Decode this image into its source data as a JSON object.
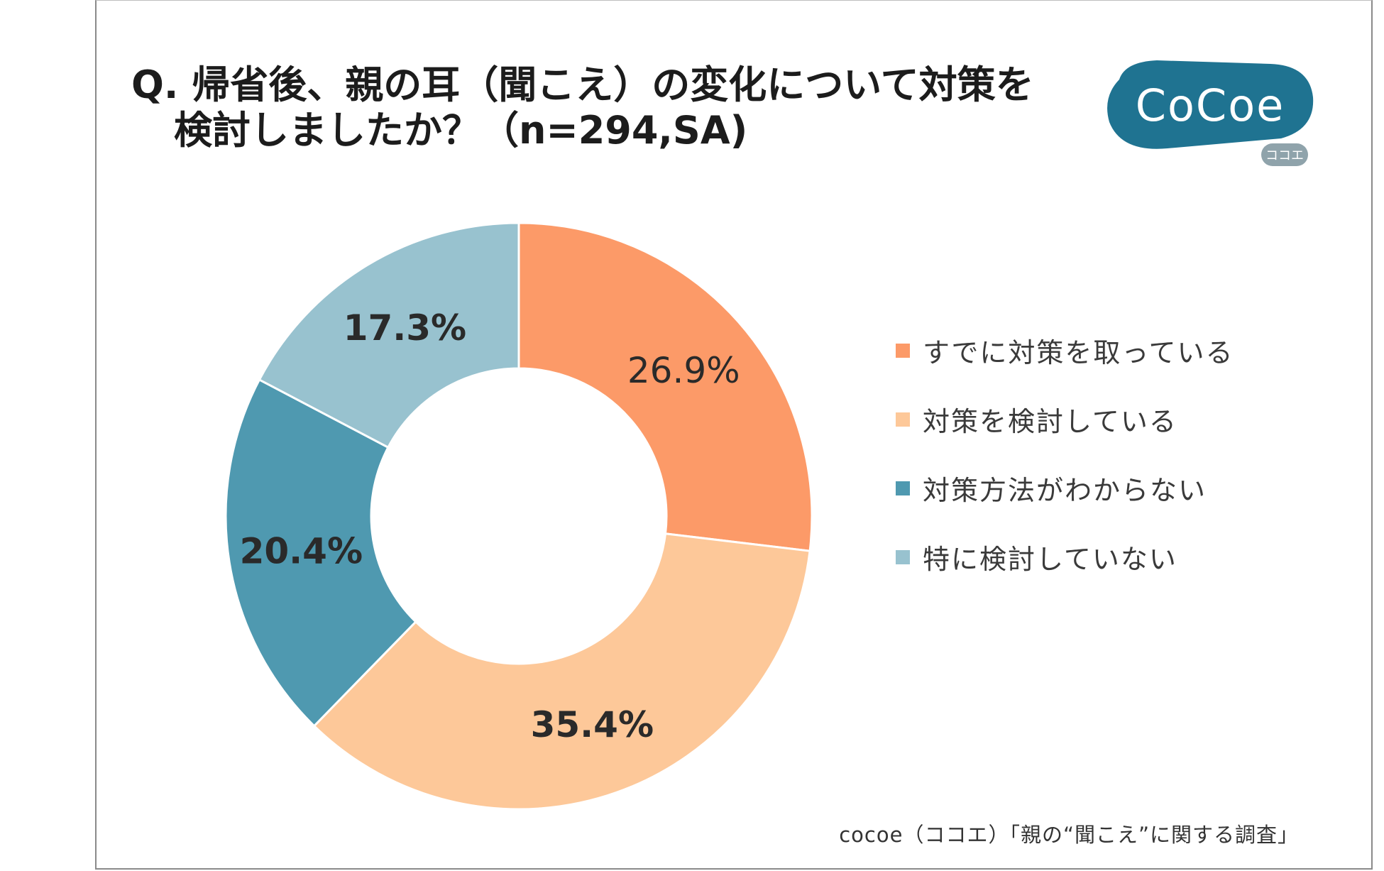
{
  "title": {
    "line1": "Q. 帰省後、親の耳（聞こえ）の変化について対策を",
    "line2": "検討しましたか？（n=294,SA)"
  },
  "logo": {
    "text": "CoCoe",
    "sub": "ココエ",
    "color": "#1f7391"
  },
  "source": "cocoe（ココエ）「親の“聞こえ”に関する調査」",
  "chart_data": {
    "type": "pie",
    "title": "Q. 帰省後、親の耳（聞こえ）の変化について対策を検討しましたか？（n=294,SA)",
    "donut": true,
    "categories": [
      "すでに対策を取っている",
      "対策を検討している",
      "対策方法がわからない",
      "特に検討していない"
    ],
    "values": [
      26.9,
      35.4,
      20.4,
      17.3
    ],
    "labels": [
      "26.9%",
      "35.4%",
      "20.4%",
      "17.3%"
    ],
    "label_bold": [
      false,
      true,
      true,
      true
    ],
    "colors": [
      "#fc9a68",
      "#fdc899",
      "#4f99b0",
      "#98c2cf"
    ],
    "legend_position": "right"
  }
}
